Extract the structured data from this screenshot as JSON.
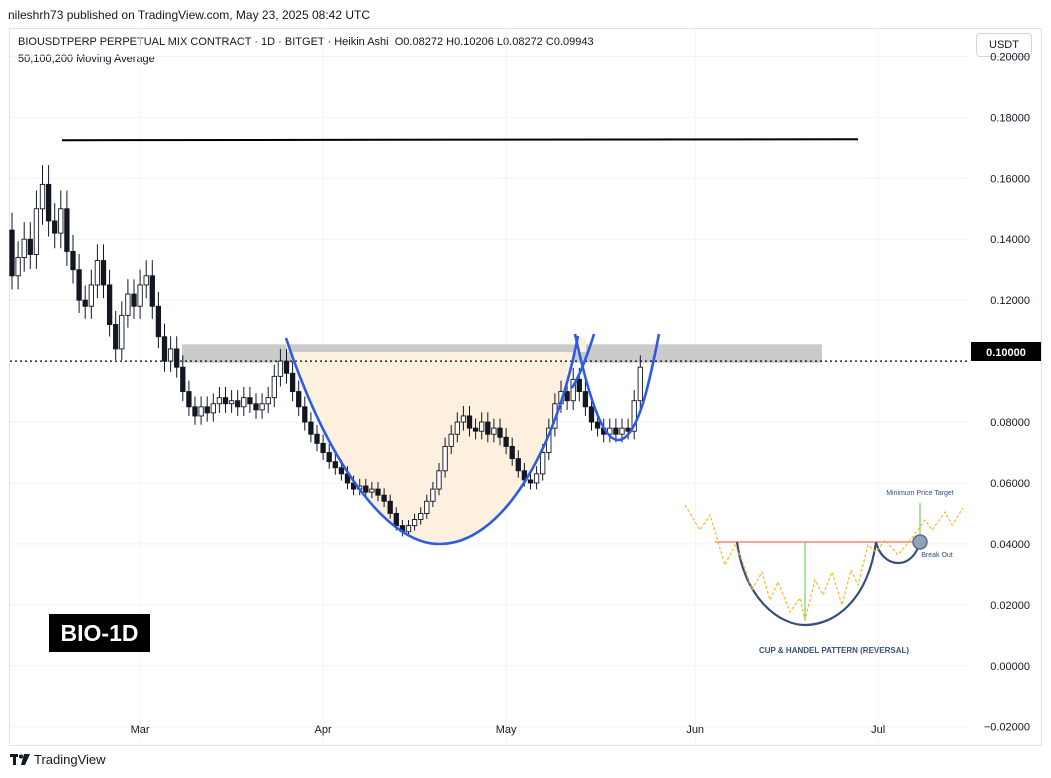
{
  "header": {
    "credit": "nileshrh73 published on TradingView.com, May 23, 2025 08:42 UTC",
    "symbol_line": "BIOUSDTPERP PERPETUAL MIX CONTRACT · 1D · BITGET · Heikin Ashi",
    "ohlc": {
      "o": "O0.08272",
      "h": "H0.10206",
      "l": "L0.08272",
      "c": "C0.09943"
    },
    "indicator": "50,100,200 Moving Average",
    "currency": "USDT"
  },
  "badge": "BIO-1D",
  "footer": {
    "brand": "TradingView"
  },
  "inset": {
    "title": "CUP & HANDEL PATTERN (REVERSAL)",
    "target_label": "Minimum Price Target",
    "breakout_label": "Break Out"
  },
  "colors": {
    "cup": "#2c5ce6",
    "cup_fill": "#fdf0df",
    "resistance_zone": "#b9b9b9",
    "candle": "#131722",
    "inset_line": "#f7b733",
    "inset_cup": "#34507a"
  },
  "chart_data": {
    "type": "candlestick",
    "style": "Heikin Ashi",
    "ylim": [
      -0.026,
      0.209
    ],
    "y_ticks": [
      "0.20000",
      "0.18000",
      "0.16000",
      "0.14000",
      "0.12000",
      "0.10000",
      "0.08000",
      "0.06000",
      "0.04000",
      "0.02000",
      "0.00000",
      "−0.02000"
    ],
    "x_ticks": [
      "Mar",
      "Apr",
      "May",
      "Jun",
      "Jul"
    ],
    "current_price": "0.10000",
    "resistance_line": 0.1725,
    "resistance_zone": [
      0.0995,
      0.1055
    ],
    "candles": [
      [
        0.143,
        0.128
      ],
      [
        0.128,
        0.134
      ],
      [
        0.134,
        0.14
      ],
      [
        0.14,
        0.135
      ],
      [
        0.135,
        0.15
      ],
      [
        0.15,
        0.158
      ],
      [
        0.158,
        0.146
      ],
      [
        0.146,
        0.142
      ],
      [
        0.142,
        0.15
      ],
      [
        0.15,
        0.136
      ],
      [
        0.136,
        0.13
      ],
      [
        0.13,
        0.12
      ],
      [
        0.12,
        0.118
      ],
      [
        0.118,
        0.125
      ],
      [
        0.125,
        0.133
      ],
      [
        0.133,
        0.125
      ],
      [
        0.125,
        0.112
      ],
      [
        0.112,
        0.104
      ],
      [
        0.104,
        0.115
      ],
      [
        0.115,
        0.122
      ],
      [
        0.122,
        0.118
      ],
      [
        0.118,
        0.125
      ],
      [
        0.125,
        0.128
      ],
      [
        0.128,
        0.118
      ],
      [
        0.118,
        0.108
      ],
      [
        0.108,
        0.1
      ],
      [
        0.1,
        0.104
      ],
      [
        0.104,
        0.098
      ],
      [
        0.098,
        0.09
      ],
      [
        0.09,
        0.085
      ],
      [
        0.085,
        0.082
      ],
      [
        0.082,
        0.085
      ],
      [
        0.085,
        0.083
      ],
      [
        0.083,
        0.086
      ],
      [
        0.086,
        0.088
      ],
      [
        0.088,
        0.086
      ],
      [
        0.086,
        0.087
      ],
      [
        0.087,
        0.085
      ],
      [
        0.085,
        0.088
      ],
      [
        0.088,
        0.086
      ],
      [
        0.086,
        0.084
      ],
      [
        0.084,
        0.086
      ],
      [
        0.086,
        0.088
      ],
      [
        0.088,
        0.095
      ],
      [
        0.095,
        0.1
      ],
      [
        0.1,
        0.096
      ],
      [
        0.096,
        0.09
      ],
      [
        0.09,
        0.085
      ],
      [
        0.085,
        0.08
      ],
      [
        0.08,
        0.076
      ],
      [
        0.076,
        0.073
      ],
      [
        0.073,
        0.07
      ],
      [
        0.07,
        0.067
      ],
      [
        0.067,
        0.065
      ],
      [
        0.065,
        0.063
      ],
      [
        0.063,
        0.06
      ],
      [
        0.06,
        0.058
      ],
      [
        0.058,
        0.059
      ],
      [
        0.059,
        0.057
      ],
      [
        0.057,
        0.058
      ],
      [
        0.058,
        0.056
      ],
      [
        0.056,
        0.054
      ],
      [
        0.054,
        0.05
      ],
      [
        0.05,
        0.046
      ],
      [
        0.046,
        0.044
      ],
      [
        0.044,
        0.046
      ],
      [
        0.046,
        0.048
      ],
      [
        0.048,
        0.05
      ],
      [
        0.05,
        0.054
      ],
      [
        0.054,
        0.058
      ],
      [
        0.058,
        0.064
      ],
      [
        0.064,
        0.072
      ],
      [
        0.072,
        0.076
      ],
      [
        0.076,
        0.08
      ],
      [
        0.08,
        0.082
      ],
      [
        0.082,
        0.078
      ],
      [
        0.078,
        0.077
      ],
      [
        0.077,
        0.08
      ],
      [
        0.08,
        0.076
      ],
      [
        0.076,
        0.078
      ],
      [
        0.078,
        0.075
      ],
      [
        0.075,
        0.072
      ],
      [
        0.072,
        0.068
      ],
      [
        0.068,
        0.064
      ],
      [
        0.064,
        0.061
      ],
      [
        0.061,
        0.06
      ],
      [
        0.06,
        0.063
      ],
      [
        0.063,
        0.07
      ],
      [
        0.07,
        0.078
      ],
      [
        0.078,
        0.086
      ],
      [
        0.086,
        0.09
      ],
      [
        0.09,
        0.087
      ],
      [
        0.087,
        0.094
      ],
      [
        0.094,
        0.09
      ],
      [
        0.09,
        0.085
      ],
      [
        0.085,
        0.08
      ],
      [
        0.08,
        0.078
      ],
      [
        0.078,
        0.076
      ],
      [
        0.076,
        0.078
      ],
      [
        0.078,
        0.076
      ],
      [
        0.076,
        0.078
      ],
      [
        0.078,
        0.077
      ],
      [
        0.077,
        0.087
      ],
      [
        0.087,
        0.098
      ]
    ]
  }
}
